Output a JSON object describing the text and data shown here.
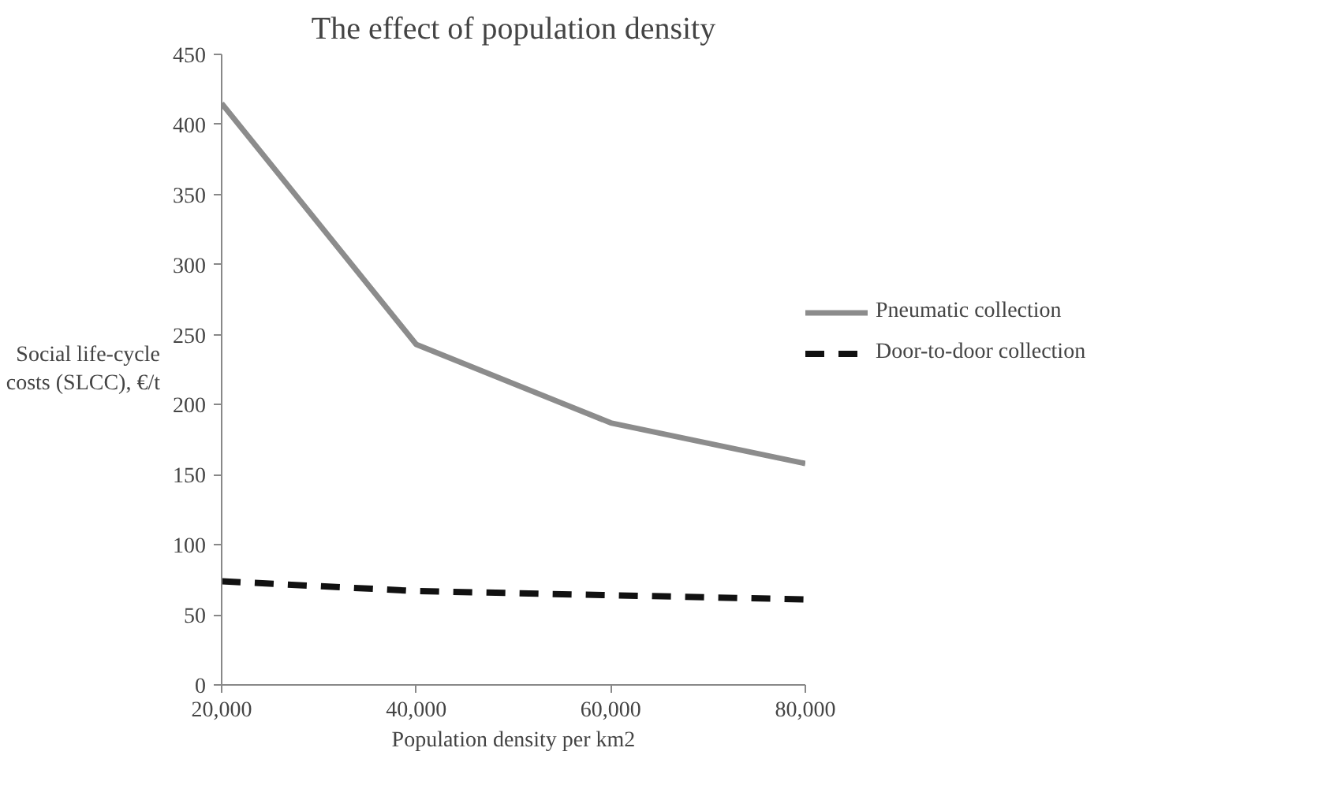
{
  "chart_data": {
    "type": "line",
    "title": "The effect of population density",
    "xlabel": "Population density per km2",
    "ylabel": "Social life-cycle costs (SLCC), €/t",
    "x": [
      20000,
      40000,
      60000,
      80000
    ],
    "series": [
      {
        "name": "Pneumatic collection",
        "color": "#8c8c8c",
        "line_style": "solid",
        "values": [
          415,
          243,
          187,
          158
        ]
      },
      {
        "name": "Door-to-door collection",
        "color": "#111111",
        "line_style": "dashed",
        "values": [
          74,
          67,
          64,
          61
        ]
      }
    ],
    "xlim": [
      20000,
      80000
    ],
    "xticks": [
      {
        "value": 20000,
        "label": "20,000"
      },
      {
        "value": 40000,
        "label": "40,000"
      },
      {
        "value": 60000,
        "label": "60,000"
      },
      {
        "value": 80000,
        "label": "80,000"
      }
    ],
    "ylim": [
      0,
      450
    ],
    "yticks": [
      0,
      50,
      100,
      150,
      200,
      250,
      300,
      350,
      400,
      450
    ],
    "grid": false,
    "legend": "right",
    "marker": "none"
  }
}
